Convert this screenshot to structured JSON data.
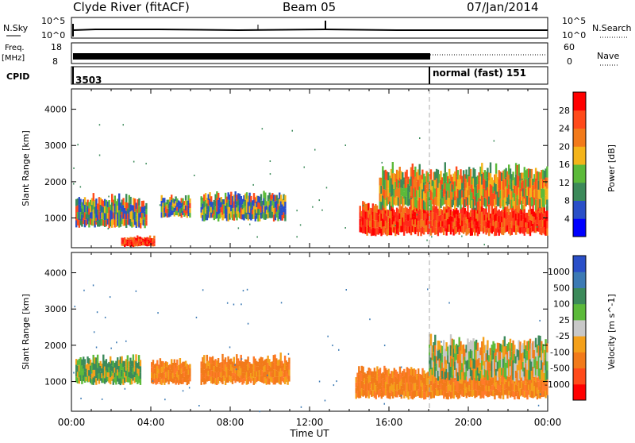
{
  "header": {
    "station": "Clyde River (fitACF)",
    "beam": "Beam 05",
    "date": "07/Jan/2014"
  },
  "top_panels": {
    "nsky_label": "N.Sky",
    "nsky_ticks": [
      "10^5",
      "10^0"
    ],
    "nsearch_label": "N.Search",
    "nsearch_ticks": [
      "10^5",
      "10^0"
    ],
    "freq_label": "Freq.",
    "freq_unit": "[MHz]",
    "freq_ticks": [
      "18",
      "8"
    ],
    "nave_label": "Nave",
    "nave_ticks": [
      "60",
      "0"
    ],
    "cpid_label": "CPID",
    "cpid_segments": [
      {
        "start_h": 0.0,
        "label": "3503"
      },
      {
        "start_h": 18.0,
        "label": "normal (fast) 151"
      }
    ]
  },
  "chart_data": [
    {
      "type": "heatmap",
      "name": "power",
      "xlabel": "",
      "ylabel": "Slant Range [km]",
      "xlim": [
        0,
        24
      ],
      "ylim": [
        180,
        4560
      ],
      "yticks": [
        1000,
        2000,
        3000,
        4000
      ],
      "colorbar": {
        "label": "Power [dB]",
        "ticks": [
          "4",
          "8",
          "12",
          "16",
          "20",
          "24",
          "28"
        ],
        "colors": [
          "#0000ff",
          "#2a4fc8",
          "#3c8a5a",
          "#5cba3a",
          "#f4b41a",
          "#f27a1a",
          "#ff4a1a",
          "#ff0000"
        ]
      },
      "echo_regions": [
        {
          "t0": 0.2,
          "t1": 3.8,
          "r0": 700,
          "r1": 1600,
          "level": "mixed-low"
        },
        {
          "t0": 4.5,
          "t1": 6.0,
          "r0": 1000,
          "r1": 1600,
          "level": "mixed-low"
        },
        {
          "t0": 6.5,
          "t1": 10.8,
          "r0": 900,
          "r1": 1700,
          "level": "mixed-low"
        },
        {
          "t0": 2.5,
          "t1": 4.2,
          "r0": 200,
          "r1": 500,
          "level": "high"
        },
        {
          "t0": 14.5,
          "t1": 24.0,
          "r0": 500,
          "r1": 1400,
          "level": "high"
        },
        {
          "t0": 15.5,
          "t1": 24.0,
          "r0": 1200,
          "r1": 2400,
          "level": "mixed-mid"
        }
      ]
    },
    {
      "type": "heatmap",
      "name": "velocity",
      "xlabel": "Time UT",
      "ylabel": "Slant Range [km]",
      "xlim": [
        0,
        24
      ],
      "ylim": [
        180,
        4560
      ],
      "xticks": [
        "00:00",
        "04:00",
        "08:00",
        "12:00",
        "16:00",
        "20:00",
        "00:00"
      ],
      "yticks": [
        1000,
        2000,
        3000,
        4000
      ],
      "colorbar": {
        "label": "Velocity [m s^-1]",
        "ticks": [
          "1000",
          "500",
          "100",
          "25",
          "-25",
          "-100",
          "-500",
          "-1000"
        ],
        "colors": [
          "#2a4fc8",
          "#3c7ab4",
          "#3c8a5a",
          "#5cba3a",
          "#c8c8c8",
          "#f4a01a",
          "#f27a1a",
          "#ff4a1a",
          "#ff0000"
        ]
      },
      "echo_regions": [
        {
          "t0": 0.2,
          "t1": 3.5,
          "r0": 900,
          "r1": 1700,
          "level": "green"
        },
        {
          "t0": 4.0,
          "t1": 6.0,
          "r0": 900,
          "r1": 1600,
          "level": "orange"
        },
        {
          "t0": 6.5,
          "t1": 11.0,
          "r0": 900,
          "r1": 1700,
          "level": "orange"
        },
        {
          "t0": 14.3,
          "t1": 24.0,
          "r0": 500,
          "r1": 1400,
          "level": "orange"
        },
        {
          "t0": 18.0,
          "t1": 24.0,
          "r0": 1000,
          "r1": 2200,
          "level": "mixed"
        }
      ]
    }
  ],
  "colors": {
    "marker_line": "#999999",
    "axis": "#000000"
  }
}
